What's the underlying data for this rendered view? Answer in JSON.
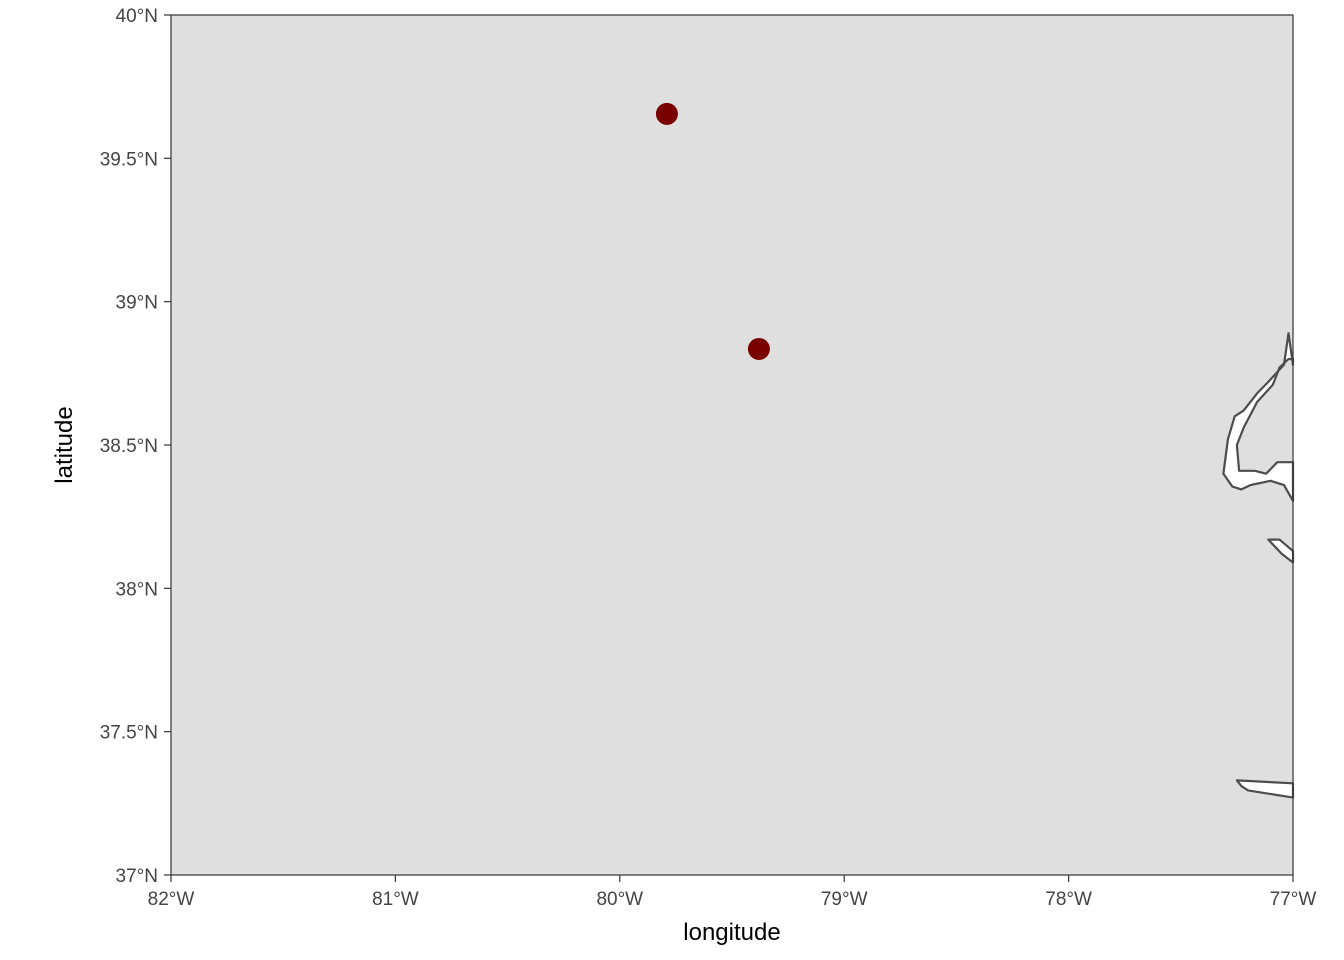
{
  "chart_data": {
    "type": "scatter",
    "title": "",
    "xlabel": "longitude",
    "ylabel": "latitude",
    "xlim": [
      -82,
      -77
    ],
    "ylim": [
      37,
      40
    ],
    "x_ticks": [
      -82,
      -81,
      -80,
      -79,
      -78,
      -77
    ],
    "x_tick_labels": [
      "82°W",
      "81°W",
      "80°W",
      "79°W",
      "78°W",
      "77°W"
    ],
    "y_ticks": [
      37,
      37.5,
      38,
      38.5,
      39,
      39.5,
      40
    ],
    "y_tick_labels": [
      "37°N",
      "37.5°N",
      "38°N",
      "38.5°N",
      "39°N",
      "39.5°N",
      "40°N"
    ],
    "grid": false,
    "panel_color": "#dfdfdf",
    "land_color": "#ffffff",
    "outline_color": "#4d4d4d",
    "points": [
      {
        "x": -79.79,
        "y": 39.655,
        "color": "#7a0000"
      },
      {
        "x": -79.38,
        "y": 38.835,
        "color": "#7a0000"
      }
    ],
    "coastlines": [
      [
        [
          -77,
          38.78
        ],
        [
          -77.02,
          38.89
        ],
        [
          -77.04,
          38.78
        ],
        [
          -77.11,
          38.72
        ],
        [
          -77.16,
          38.68
        ],
        [
          -77.22,
          38.62
        ],
        [
          -77.26,
          38.6
        ],
        [
          -77.29,
          38.52
        ],
        [
          -77.31,
          38.4
        ],
        [
          -77.27,
          38.355
        ],
        [
          -77.23,
          38.345
        ],
        [
          -77.19,
          38.36
        ],
        [
          -77.1,
          38.375
        ],
        [
          -77.04,
          38.36
        ],
        [
          -77,
          38.305
        ],
        [
          -77,
          38.44
        ],
        [
          -77.07,
          38.44
        ],
        [
          -77.12,
          38.4
        ],
        [
          -77.17,
          38.41
        ],
        [
          -77.24,
          38.41
        ],
        [
          -77.25,
          38.5
        ],
        [
          -77.22,
          38.56
        ],
        [
          -77.16,
          38.65
        ],
        [
          -77.09,
          38.71
        ],
        [
          -77.06,
          38.77
        ],
        [
          -77.02,
          38.8
        ],
        [
          -77,
          38.8
        ]
      ],
      [
        [
          -77,
          38.13
        ],
        [
          -77.06,
          38.17
        ],
        [
          -77.11,
          38.17
        ],
        [
          -77.05,
          38.12
        ],
        [
          -77,
          38.09
        ]
      ],
      [
        [
          -77,
          37.32
        ],
        [
          -77.25,
          37.33
        ],
        [
          -77.23,
          37.31
        ],
        [
          -77.2,
          37.295
        ],
        [
          -77,
          37.27
        ]
      ]
    ]
  }
}
